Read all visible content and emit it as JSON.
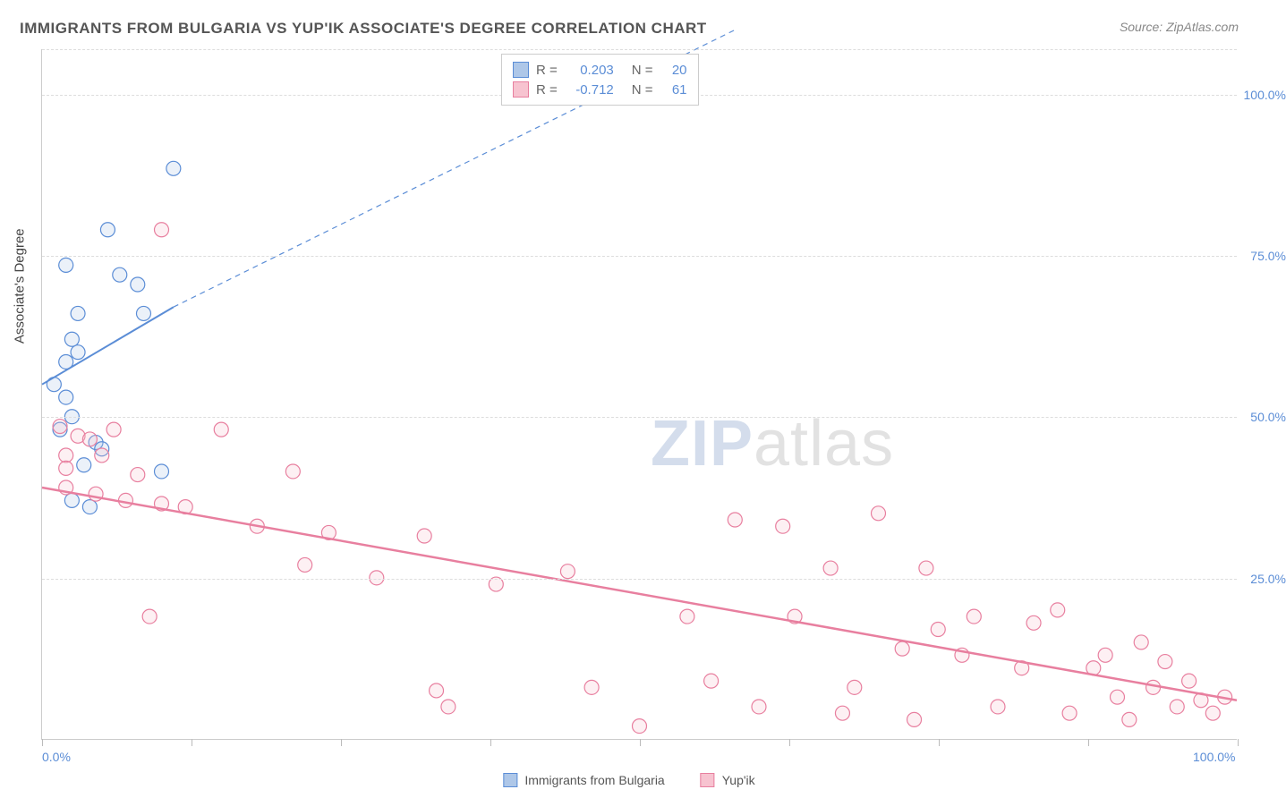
{
  "title": "IMMIGRANTS FROM BULGARIA VS YUP'IK ASSOCIATE'S DEGREE CORRELATION CHART",
  "source": "Source: ZipAtlas.com",
  "y_axis_title": "Associate's Degree",
  "watermark_bold": "ZIP",
  "watermark_light": "atlas",
  "chart": {
    "type": "scatter",
    "xlim": [
      0,
      100
    ],
    "ylim": [
      0,
      107
    ],
    "x_tick_labels": {
      "0": "0.0%",
      "100": "100.0%"
    },
    "y_tick_labels": {
      "25": "25.0%",
      "50": "50.0%",
      "75": "75.0%",
      "100": "100.0%"
    },
    "y_gridlines": [
      25,
      50,
      75,
      100,
      107
    ],
    "x_ticks": [
      0,
      12.5,
      25,
      37.5,
      50,
      62.5,
      75,
      87.5,
      100
    ],
    "background_color": "#ffffff",
    "grid_color": "#dddddd",
    "axis_color": "#cccccc",
    "tick_label_color": "#5b8dd6",
    "marker_radius": 8,
    "marker_stroke_width": 1.2,
    "marker_fill_opacity": 0.25,
    "series": [
      {
        "name": "Immigrants from Bulgaria",
        "color_stroke": "#5b8dd6",
        "color_fill": "#aec7e8",
        "R": "0.203",
        "N": "20",
        "trend": {
          "x1": 0,
          "y1": 55,
          "x2_solid": 11,
          "y2_solid": 67,
          "x2_dash": 58,
          "y2_dash": 110,
          "stroke_width": 2
        },
        "points": [
          [
            11,
            88.5
          ],
          [
            5.5,
            79
          ],
          [
            2,
            73.5
          ],
          [
            6.5,
            72
          ],
          [
            8,
            70.5
          ],
          [
            3,
            66
          ],
          [
            8.5,
            66
          ],
          [
            2.5,
            62
          ],
          [
            3,
            60
          ],
          [
            2,
            58.5
          ],
          [
            1,
            55
          ],
          [
            2,
            53
          ],
          [
            2.5,
            50
          ],
          [
            1.5,
            48
          ],
          [
            4.5,
            46
          ],
          [
            5,
            45
          ],
          [
            3.5,
            42.5
          ],
          [
            10,
            41.5
          ],
          [
            2.5,
            37
          ],
          [
            4,
            36
          ]
        ]
      },
      {
        "name": "Yup'ik",
        "color_stroke": "#e87f9f",
        "color_fill": "#f7c3d0",
        "R": "-0.712",
        "N": "61",
        "trend": {
          "x1": 0,
          "y1": 39,
          "x2": 100,
          "y2": 6,
          "stroke_width": 2.5
        },
        "points": [
          [
            10,
            79
          ],
          [
            1.5,
            48.5
          ],
          [
            3,
            47
          ],
          [
            4,
            46.5
          ],
          [
            6,
            48
          ],
          [
            15,
            48
          ],
          [
            2,
            44
          ],
          [
            5,
            44
          ],
          [
            2,
            42
          ],
          [
            8,
            41
          ],
          [
            2,
            39
          ],
          [
            4.5,
            38
          ],
          [
            7,
            37
          ],
          [
            10,
            36.5
          ],
          [
            12,
            36
          ],
          [
            21,
            41.5
          ],
          [
            18,
            33
          ],
          [
            24,
            32
          ],
          [
            32,
            31.5
          ],
          [
            9,
            19
          ],
          [
            22,
            27
          ],
          [
            28,
            25
          ],
          [
            33,
            7.5
          ],
          [
            38,
            24
          ],
          [
            44,
            26
          ],
          [
            34,
            5
          ],
          [
            46,
            8
          ],
          [
            50,
            2
          ],
          [
            54,
            19
          ],
          [
            56,
            9
          ],
          [
            58,
            34
          ],
          [
            60,
            5
          ],
          [
            62,
            33
          ],
          [
            63,
            19
          ],
          [
            66,
            26.5
          ],
          [
            67,
            4
          ],
          [
            68,
            8
          ],
          [
            70,
            35
          ],
          [
            72,
            14
          ],
          [
            73,
            3
          ],
          [
            74,
            26.5
          ],
          [
            75,
            17
          ],
          [
            77,
            13
          ],
          [
            78,
            19
          ],
          [
            80,
            5
          ],
          [
            82,
            11
          ],
          [
            83,
            18
          ],
          [
            85,
            20
          ],
          [
            86,
            4
          ],
          [
            88,
            11
          ],
          [
            89,
            13
          ],
          [
            90,
            6.5
          ],
          [
            91,
            3
          ],
          [
            92,
            15
          ],
          [
            93,
            8
          ],
          [
            94,
            12
          ],
          [
            95,
            5
          ],
          [
            96,
            9
          ],
          [
            97,
            6
          ],
          [
            98,
            4
          ],
          [
            99,
            6.5
          ]
        ]
      }
    ]
  },
  "legend": {
    "items": [
      {
        "label": "Immigrants from Bulgaria",
        "fill": "#aec7e8",
        "stroke": "#5b8dd6"
      },
      {
        "label": "Yup'ik",
        "fill": "#f7c3d0",
        "stroke": "#e87f9f"
      }
    ]
  }
}
